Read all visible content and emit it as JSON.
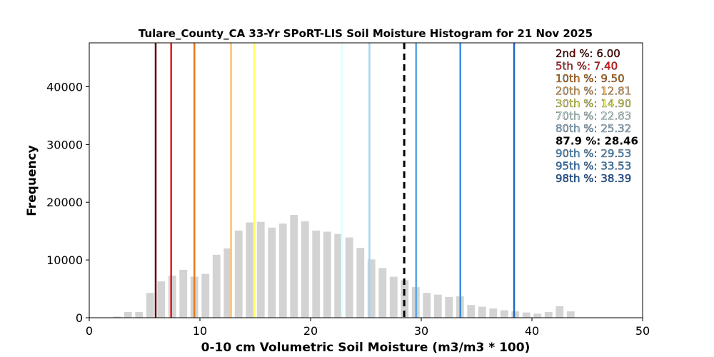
{
  "chart_data": {
    "type": "bar",
    "title": "Tulare_County_CA 33-Yr SPoRT-LIS Soil Moisture Histogram for 21 Nov 2025",
    "xlabel": "0-10 cm Volumetric Soil Moisture (m3/m3 * 100)",
    "ylabel": "Frequency",
    "xlim": [
      0,
      50
    ],
    "ylim": [
      0,
      47600
    ],
    "xticks": [
      0,
      10,
      20,
      30,
      40,
      50
    ],
    "yticks": [
      0,
      10000,
      20000,
      30000,
      40000
    ],
    "grid": false,
    "bar_color": "#d3d3d3",
    "bar_width": 0.7,
    "bins": [
      {
        "x": 2.5,
        "value": 200
      },
      {
        "x": 3.5,
        "value": 1000
      },
      {
        "x": 4.5,
        "value": 1000
      },
      {
        "x": 5.5,
        "value": 4300
      },
      {
        "x": 6.5,
        "value": 6300
      },
      {
        "x": 7.5,
        "value": 7300
      },
      {
        "x": 8.5,
        "value": 8300
      },
      {
        "x": 9.5,
        "value": 7100
      },
      {
        "x": 10.5,
        "value": 7600
      },
      {
        "x": 11.5,
        "value": 10900
      },
      {
        "x": 12.5,
        "value": 12000
      },
      {
        "x": 13.5,
        "value": 15100
      },
      {
        "x": 14.5,
        "value": 16500
      },
      {
        "x": 15.5,
        "value": 16600
      },
      {
        "x": 16.5,
        "value": 15600
      },
      {
        "x": 17.5,
        "value": 16300
      },
      {
        "x": 18.5,
        "value": 17800
      },
      {
        "x": 19.5,
        "value": 16700
      },
      {
        "x": 20.5,
        "value": 15100
      },
      {
        "x": 21.5,
        "value": 14900
      },
      {
        "x": 22.5,
        "value": 14500
      },
      {
        "x": 23.5,
        "value": 13900
      },
      {
        "x": 24.5,
        "value": 12100
      },
      {
        "x": 25.5,
        "value": 10100
      },
      {
        "x": 26.5,
        "value": 8600
      },
      {
        "x": 27.5,
        "value": 7100
      },
      {
        "x": 28.5,
        "value": 6500
      },
      {
        "x": 29.5,
        "value": 5300
      },
      {
        "x": 30.5,
        "value": 4300
      },
      {
        "x": 31.5,
        "value": 4000
      },
      {
        "x": 32.5,
        "value": 3600
      },
      {
        "x": 33.5,
        "value": 3700
      },
      {
        "x": 34.5,
        "value": 2200
      },
      {
        "x": 35.5,
        "value": 1900
      },
      {
        "x": 36.5,
        "value": 1600
      },
      {
        "x": 37.5,
        "value": 1300
      },
      {
        "x": 38.5,
        "value": 1100
      },
      {
        "x": 39.5,
        "value": 900
      },
      {
        "x": 40.5,
        "value": 700
      },
      {
        "x": 41.5,
        "value": 1000
      },
      {
        "x": 42.5,
        "value": 2000
      },
      {
        "x": 43.5,
        "value": 1100
      }
    ],
    "percentile_lines": [
      {
        "label": "2nd %: 6.00",
        "x": 6.0,
        "color": "#5c0000",
        "dashed": false
      },
      {
        "label": "5th %: 7.40",
        "x": 7.4,
        "color": "#e31a1c",
        "dashed": false
      },
      {
        "label": "10th %: 9.50",
        "x": 9.5,
        "color": "#e07b1a",
        "dashed": false
      },
      {
        "label": "20th %: 12.81",
        "x": 12.81,
        "color": "#fdbf6f",
        "dashed": false
      },
      {
        "label": "30th %: 14.90",
        "x": 14.9,
        "color": "#ffff66",
        "dashed": false
      },
      {
        "label": "70th %: 22.83",
        "x": 22.83,
        "color": "#e0ffff",
        "dashed": false
      },
      {
        "label": "80th %: 25.32",
        "x": 25.32,
        "color": "#a6d4f2",
        "dashed": false
      },
      {
        "label": "87.9 %: 28.46",
        "x": 28.46,
        "color": "#000000",
        "dashed": true
      },
      {
        "label": "90th %: 29.53",
        "x": 29.53,
        "color": "#5aa7ea",
        "dashed": false
      },
      {
        "label": "95th %: 33.53",
        "x": 33.53,
        "color": "#3a8ee0",
        "dashed": false
      },
      {
        "label": "98th %: 38.39",
        "x": 38.39,
        "color": "#1f66c4",
        "dashed": false
      }
    ],
    "legend_placement": "top-right"
  }
}
